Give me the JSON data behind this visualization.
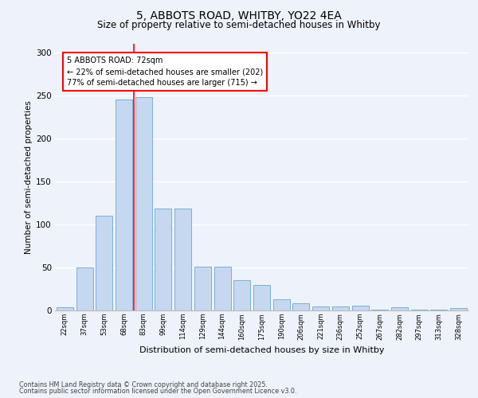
{
  "title1": "5, ABBOTS ROAD, WHITBY, YO22 4EA",
  "title2": "Size of property relative to semi-detached houses in Whitby",
  "xlabel": "Distribution of semi-detached houses by size in Whitby",
  "ylabel": "Number of semi-detached properties",
  "categories": [
    "22sqm",
    "37sqm",
    "53sqm",
    "68sqm",
    "83sqm",
    "99sqm",
    "114sqm",
    "129sqm",
    "144sqm",
    "160sqm",
    "175sqm",
    "190sqm",
    "206sqm",
    "221sqm",
    "236sqm",
    "252sqm",
    "267sqm",
    "282sqm",
    "297sqm",
    "313sqm",
    "328sqm"
  ],
  "values": [
    4,
    50,
    110,
    245,
    248,
    118,
    118,
    51,
    51,
    35,
    30,
    13,
    8,
    5,
    5,
    6,
    1,
    4,
    1,
    1,
    3
  ],
  "bar_color": "#c5d8f0",
  "bar_edge_color": "#7bafd4",
  "background_color": "#eef2fb",
  "red_line_x": 3.5,
  "annotation_text": "5 ABBOTS ROAD: 72sqm\n← 22% of semi-detached houses are smaller (202)\n77% of semi-detached houses are larger (715) →",
  "ylim": [
    0,
    310
  ],
  "yticks": [
    0,
    50,
    100,
    150,
    200,
    250,
    300
  ],
  "footer1": "Contains HM Land Registry data © Crown copyright and database right 2025.",
  "footer2": "Contains public sector information licensed under the Open Government Licence v3.0."
}
